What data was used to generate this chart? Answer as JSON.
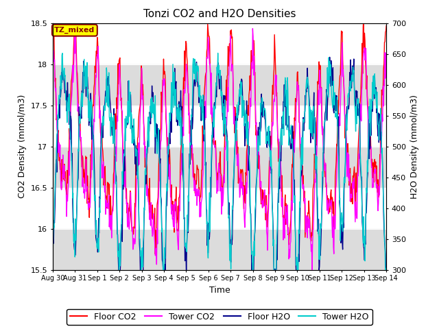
{
  "title": "Tonzi CO2 and H2O Densities",
  "xlabel": "Time",
  "ylabel_left": "CO2 Density (mmol/m3)",
  "ylabel_right": "H2O Density (mmol/m3)",
  "ylim_left": [
    15.5,
    18.5
  ],
  "ylim_right": [
    300,
    700
  ],
  "yticks_left": [
    15.5,
    16.0,
    16.5,
    17.0,
    17.5,
    18.0,
    18.5
  ],
  "yticks_right": [
    300,
    350,
    400,
    450,
    500,
    550,
    600,
    650,
    700
  ],
  "xtick_labels": [
    "Aug 30",
    "Aug 31",
    "Sep 1",
    "Sep 2",
    "Sep 3",
    "Sep 4",
    "Sep 5",
    "Sep 6",
    "Sep 7",
    "Sep 8",
    "Sep 9",
    "Sep 10",
    "Sep 11",
    "Sep 12",
    "Sep 13",
    "Sep 14"
  ],
  "annotation_text": "TZ_mixed",
  "annotation_color": "#8B0000",
  "annotation_bg": "#FFFF00",
  "line_colors": {
    "floor_co2": "#FF0000",
    "tower_co2": "#FF00FF",
    "floor_h2o": "#00008B",
    "tower_h2o": "#00CCCC"
  },
  "line_widths": {
    "floor_co2": 1.0,
    "tower_co2": 1.0,
    "floor_h2o": 1.0,
    "tower_h2o": 1.0
  },
  "legend_labels": [
    "Floor CO2",
    "Tower CO2",
    "Floor H2O",
    "Tower H2O"
  ],
  "n_days": 15,
  "pts_per_day": 48,
  "bg_color": "#FFFFFF",
  "gray_band_color": "#DCDCDC"
}
